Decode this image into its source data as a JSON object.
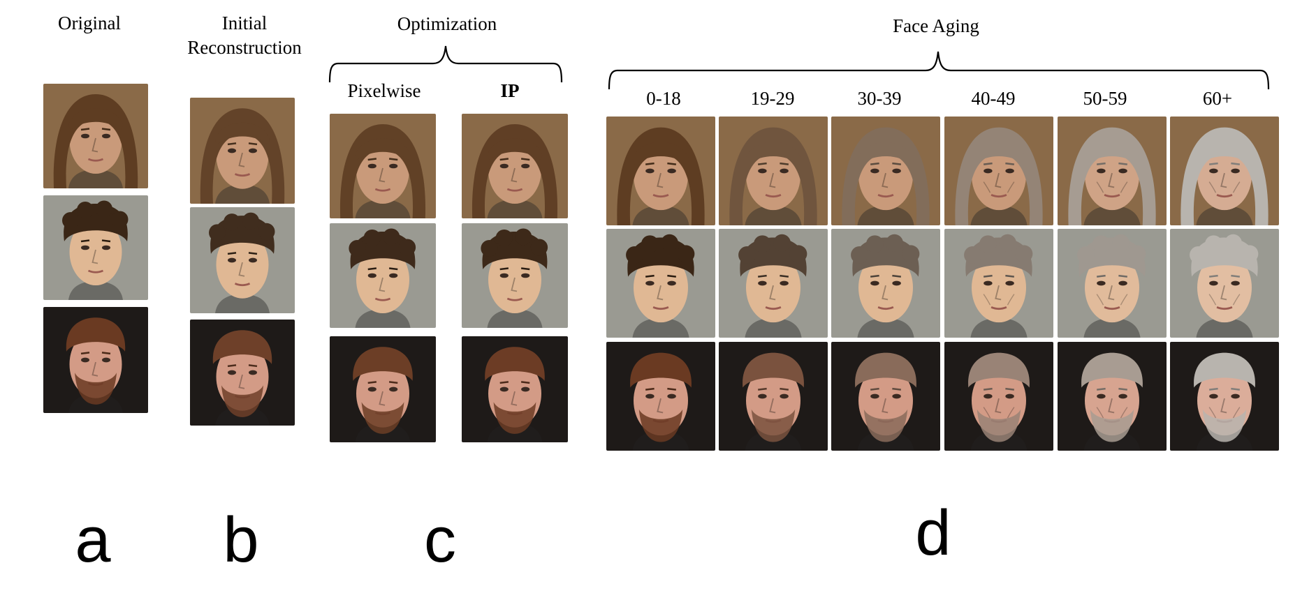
{
  "headers": {
    "original": "Original",
    "initial_line1": "Initial",
    "initial_line2": "Reconstruction",
    "optimization": "Optimization",
    "pixelwise": "Pixelwise",
    "ip": "IP",
    "face_aging": "Face Aging",
    "age_groups": [
      "0-18",
      "19-29",
      "30-39",
      "40-49",
      "50-59",
      "60+"
    ]
  },
  "panel_letters": {
    "a": "a",
    "b": "b",
    "c": "c",
    "d": "d"
  },
  "subjects": [
    {
      "skin": "#c99a7a",
      "hair": "#5e3d22",
      "bg": "#8a6a48",
      "hair_style": "bangs-long"
    },
    {
      "skin": "#e0b894",
      "hair": "#3a2616",
      "bg": "#9a9a92",
      "hair_style": "short-curly"
    },
    {
      "skin": "#d39b86",
      "hair": "#6a3a22",
      "bg": "#1e1a18",
      "hair_style": "short-beard"
    }
  ],
  "colors": {
    "aging_gray_hair": "#b8b4ae",
    "bracket": "#000000"
  }
}
